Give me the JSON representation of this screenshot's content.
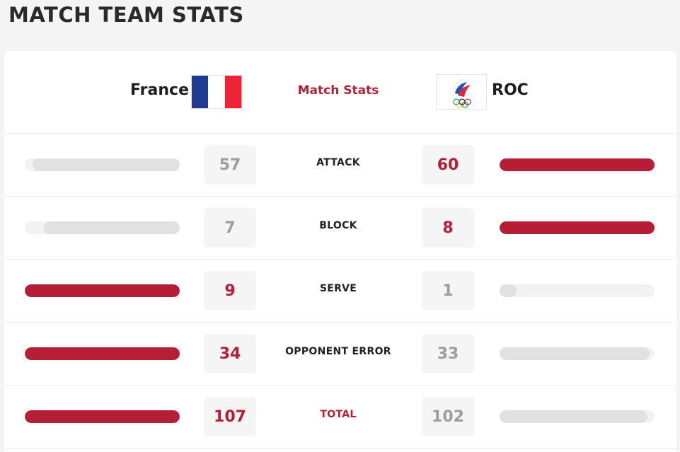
{
  "page": {
    "title": "MATCH TEAM STATS"
  },
  "header": {
    "team_left": "France",
    "team_right": "ROC",
    "center_label": "Match Stats",
    "team_left_flag": "france-flag",
    "team_right_flag": "roc-flag"
  },
  "colors": {
    "accent": "#b51e34",
    "bar_inactive": "#e1e1e1",
    "value_inactive": "#9d9d9d"
  },
  "stats": [
    {
      "label": "ATTACK",
      "left": "57",
      "right": "60",
      "leader": "right"
    },
    {
      "label": "BLOCK",
      "left": "7",
      "right": "8",
      "leader": "right"
    },
    {
      "label": "SERVE",
      "left": "9",
      "right": "1",
      "leader": "left"
    },
    {
      "label": "OPPONENT ERROR",
      "left": "34",
      "right": "33",
      "leader": "left"
    },
    {
      "label": "TOTAL",
      "left": "107",
      "right": "102",
      "leader": "left"
    }
  ]
}
